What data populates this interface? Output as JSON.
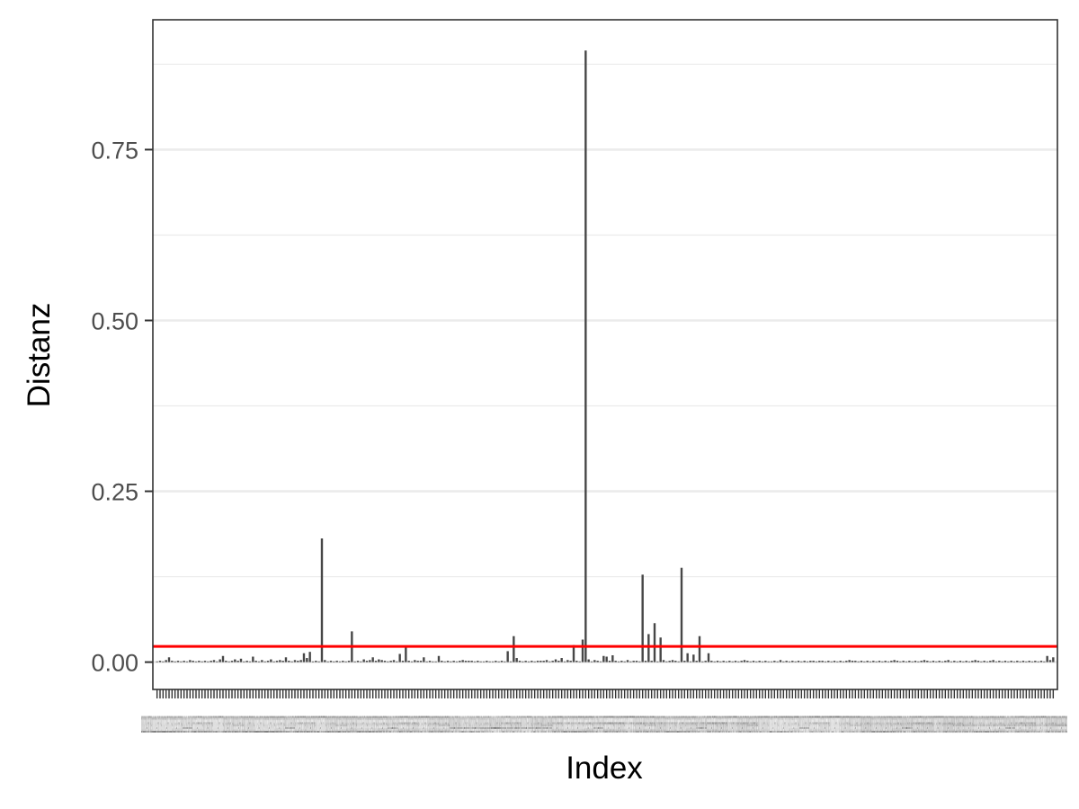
{
  "chart_data": {
    "type": "bar",
    "title": "",
    "xlabel": "Index",
    "ylabel": "Distanz",
    "ylim": [
      -0.04,
      0.94
    ],
    "y_ticks": [
      0.0,
      0.25,
      0.5,
      0.75
    ],
    "y_tick_labels": [
      "0.00",
      "0.25",
      "0.50",
      "0.75"
    ],
    "x_tick_labels": [
      "1",
      "10",
      "100",
      "101",
      "102",
      "103",
      "104",
      "105",
      "106",
      "107"
    ],
    "x_ticklabel_row_text": "1010010110210310410510610710810911011111211311411511611711811912012112212312412512612712812913013113213313413513613713813914014114214314414514614714814915015115215315415515615715815916016116216316416516616716816917017117217317417517617717817918018118218318418518618718818919019119219319419519619719819920020120220320420520620720820921021121221321421521621721821922022122222322422522622722822923023123223323423523623723823924024124224324424524624724824925025125225325425525625725825926026126226326426526626726826927027127227327427527627727827928028128228328428528628728828929029129229329429529629729829930030130230330430530630730830931031131231331431531631731831932032132232332432532632732832933033133233333433533633733833934034134234334434534634734834935035135235335435535635735835936036136236336436536636736836937037137237337437537637737837938038138238338438538638738838939039139239339439539639739839940040140240340440540640740840941041141241341441541641741841942042142242342442542642742842943043143243343443543643743843944044144244344444544644744844945045145245345445545645745845946046146246346446546646746846947047147247347447547647747847948048148248348448548648748848949049149249349449549649749849950050150250350450550650750850951051151251351451551651751851952052152252352452552652752852953053153253353453553653753853954054154254354454554654754854955055155255355455555655755855956056156256356456556656756856957057157257357457557657757857958058158258358458558658758858959059159259359459559659759859960060160260360460560660760860961061161261361461561661761861962062162262362462562662762862963063163263363463563663763863964064164264364464564664764864965065165265365465565665765865966066166266366466566666766866967067167267367467567667767867968068168268368468568668768868969069169269369469569669769869970070170270370470570670770870971071171271371471571671771871972072172272372472572672772872973073173273373473573673773873974074174274374474574674774874975075175275375475575675775875976076176276376476576676776876977077177277377477577677777877978078178278378478578678778878979079179279379479579679779879980080180280380480580680780880981081181281381481581681781881982082182282382482582682782882983083183283383483583683783883984084184284384484584684784884985085185285385485585685785885986086186286386486586686786886987087187287387487587687787887988088188288388488588688788888989089189289389489589689789889990090190290390490590690790890991091191291391491591691791891992092192292392492592692792892993093193293393493593693793893994094194294394494594694794894995095195295395495595695795895996096196296396496596696796896997097197297397497597697797897998098198298398498598698798898999099199299399499599699799899910",
    "threshold": {
      "y": 0.023,
      "color": "#ff0000"
    },
    "bar_color": "#474747",
    "grid": true,
    "colors": {
      "panel_border": "#333333",
      "grid": "#ebebeb",
      "tick_text": "#4d4d4d",
      "title_text": "#000000"
    },
    "n_bars": 300,
    "values": [
      0.001,
      0.002,
      0.001,
      0.003,
      0.007,
      0.002,
      0.001,
      0.002,
      0.001,
      0.002,
      0.001,
      0.003,
      0.002,
      0.001,
      0.002,
      0.001,
      0.002,
      0.001,
      0.002,
      0.003,
      0.001,
      0.004,
      0.009,
      0.002,
      0.001,
      0.002,
      0.004,
      0.002,
      0.005,
      0.001,
      0.002,
      0.001,
      0.008,
      0.002,
      0.001,
      0.003,
      0.001,
      0.002,
      0.004,
      0.001,
      0.002,
      0.003,
      0.002,
      0.007,
      0.002,
      0.001,
      0.003,
      0.002,
      0.003,
      0.013,
      0.006,
      0.015,
      0.001,
      0.002,
      0.001,
      0.181,
      0.003,
      0.001,
      0.002,
      0.001,
      0.002,
      0.001,
      0.002,
      0.001,
      0.002,
      0.045,
      0.001,
      0.002,
      0.001,
      0.004,
      0.002,
      0.003,
      0.007,
      0.002,
      0.004,
      0.003,
      0.002,
      0.001,
      0.002,
      0.003,
      0.001,
      0.012,
      0.002,
      0.024,
      0.002,
      0.001,
      0.003,
      0.002,
      0.002,
      0.007,
      0.001,
      0.002,
      0.001,
      0.001,
      0.009,
      0.002,
      0.001,
      0.002,
      0.001,
      0.002,
      0.001,
      0.002,
      0.003,
      0.002,
      0.002,
      0.002,
      0.001,
      0.002,
      0.001,
      0.001,
      0.002,
      0.001,
      0.001,
      0.002,
      0.001,
      0.002,
      0.001,
      0.016,
      0.001,
      0.038,
      0.006,
      0.002,
      0.001,
      0.002,
      0.001,
      0.002,
      0.001,
      0.002,
      0.002,
      0.002,
      0.003,
      0.001,
      0.002,
      0.004,
      0.002,
      0.006,
      0.001,
      0.003,
      0.002,
      0.025,
      0.002,
      0.001,
      0.033,
      0.895,
      0.004,
      0.001,
      0.003,
      0.002,
      0.001,
      0.009,
      0.008,
      0.002,
      0.01,
      0.002,
      0.001,
      0.002,
      0.001,
      0.003,
      0.001,
      0.002,
      0.002,
      0.001,
      0.128,
      0.002,
      0.041,
      0.002,
      0.057,
      0.001,
      0.036,
      0.003,
      0.001,
      0.002,
      0.003,
      0.002,
      0.001,
      0.138,
      0.002,
      0.013,
      0.001,
      0.011,
      0.002,
      0.038,
      0.001,
      0.002,
      0.013,
      0.002,
      0.001,
      0.002,
      0.001,
      0.002,
      0.001,
      0.002,
      0.001,
      0.002,
      0.001,
      0.002,
      0.003,
      0.002,
      0.001,
      0.002,
      0.001,
      0.002,
      0.001,
      0.002,
      0.001,
      0.001,
      0.002,
      0.001,
      0.003,
      0.001,
      0.002,
      0.001,
      0.002,
      0.001,
      0.002,
      0.001,
      0.002,
      0.001,
      0.002,
      0.002,
      0.001,
      0.002,
      0.002,
      0.001,
      0.002,
      0.001,
      0.002,
      0.001,
      0.002,
      0.001,
      0.002,
      0.003,
      0.002,
      0.002,
      0.001,
      0.002,
      0.001,
      0.002,
      0.001,
      0.002,
      0.001,
      0.002,
      0.001,
      0.002,
      0.001,
      0.002,
      0.003,
      0.002,
      0.001,
      0.002,
      0.001,
      0.002,
      0.001,
      0.002,
      0.001,
      0.002,
      0.003,
      0.002,
      0.001,
      0.002,
      0.001,
      0.002,
      0.001,
      0.002,
      0.003,
      0.001,
      0.002,
      0.001,
      0.002,
      0.001,
      0.002,
      0.001,
      0.002,
      0.003,
      0.002,
      0.001,
      0.002,
      0.001,
      0.002,
      0.003,
      0.001,
      0.002,
      0.001,
      0.002,
      0.001,
      0.002,
      0.001,
      0.002,
      0.001,
      0.002,
      0.001,
      0.002,
      0.001,
      0.002,
      0.001,
      0.002,
      0.001,
      0.009,
      0.003,
      0.007
    ]
  }
}
